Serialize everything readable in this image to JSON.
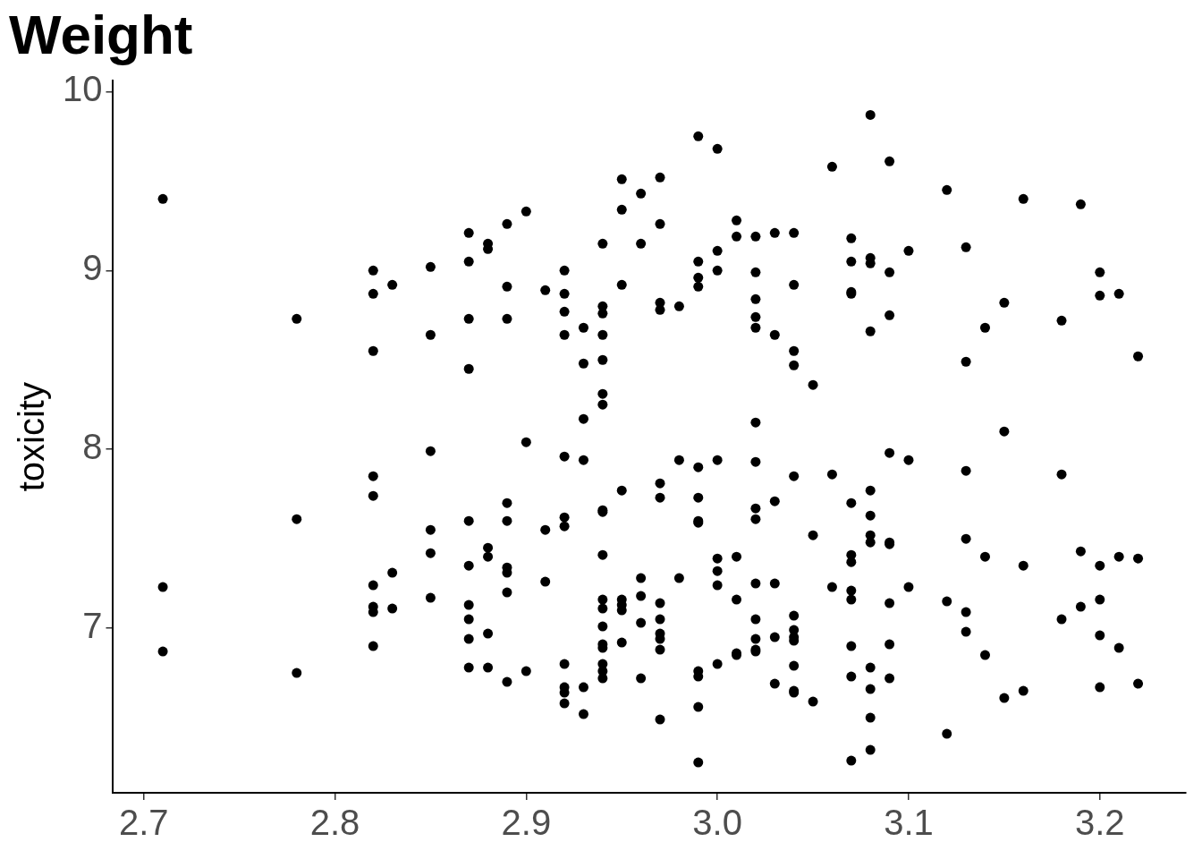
{
  "chart_data": {
    "type": "scatter",
    "title": "Weight",
    "ylabel": "toxicity",
    "color": "#000000",
    "marker": "circle",
    "grid": false,
    "legend": false,
    "xlim": [
      2.684,
      3.245
    ],
    "ylim": [
      6.08,
      10.06
    ],
    "xticks": [
      2.7,
      2.8,
      2.9,
      {
        "value": 3,
        "label": "3.0"
      },
      3.1,
      3.2
    ],
    "yticks": [
      7,
      8,
      9,
      10
    ],
    "x": [
      2.71,
      2.71,
      2.71,
      2.78,
      2.78,
      2.78,
      2.82,
      2.82,
      2.82,
      2.82,
      2.82,
      2.82,
      2.82,
      2.82,
      2.82,
      2.83,
      2.83,
      2.83,
      2.85,
      2.85,
      2.85,
      2.85,
      2.85,
      2.85,
      2.87,
      2.87,
      2.87,
      2.87,
      2.87,
      2.87,
      2.87,
      2.87,
      2.87,
      2.87,
      2.88,
      2.88,
      2.88,
      2.88,
      2.88,
      2.88,
      2.89,
      2.89,
      2.89,
      2.89,
      2.89,
      2.89,
      2.89,
      2.89,
      2.89,
      2.9,
      2.9,
      2.9,
      2.91,
      2.91,
      2.91,
      2.92,
      2.92,
      2.92,
      2.92,
      2.92,
      2.92,
      2.92,
      2.92,
      2.92,
      2.92,
      2.92,
      2.93,
      2.93,
      2.93,
      2.93,
      2.93,
      2.93,
      2.94,
      2.94,
      2.94,
      2.94,
      2.94,
      2.94,
      2.94,
      2.94,
      2.94,
      2.94,
      2.94,
      2.94,
      2.94,
      2.94,
      2.94,
      2.94,
      2.94,
      2.94,
      2.95,
      2.95,
      2.95,
      2.95,
      2.95,
      2.95,
      2.95,
      2.95,
      2.96,
      2.96,
      2.96,
      2.96,
      2.96,
      2.96,
      2.97,
      2.97,
      2.97,
      2.97,
      2.97,
      2.97,
      2.97,
      2.97,
      2.97,
      2.97,
      2.97,
      2.97,
      2.98,
      2.98,
      2.98,
      2.99,
      2.99,
      2.99,
      2.99,
      2.99,
      2.99,
      2.99,
      2.99,
      2.99,
      2.99,
      2.99,
      2.99,
      3.0,
      3.0,
      3.0,
      3.0,
      3.0,
      3.0,
      3.0,
      3.0,
      3.01,
      3.01,
      3.01,
      3.01,
      3.01,
      3.01,
      3.02,
      3.02,
      3.02,
      3.02,
      3.02,
      3.02,
      3.02,
      3.02,
      3.02,
      3.02,
      3.02,
      3.02,
      3.02,
      3.02,
      3.03,
      3.03,
      3.03,
      3.03,
      3.03,
      3.03,
      3.04,
      3.04,
      3.04,
      3.04,
      3.04,
      3.04,
      3.04,
      3.04,
      3.04,
      3.04,
      3.04,
      3.04,
      3.05,
      3.05,
      3.05,
      3.06,
      3.06,
      3.06,
      3.07,
      3.07,
      3.07,
      3.07,
      3.07,
      3.07,
      3.07,
      3.07,
      3.07,
      3.07,
      3.07,
      3.07,
      3.08,
      3.08,
      3.08,
      3.08,
      3.08,
      3.08,
      3.08,
      3.08,
      3.08,
      3.08,
      3.08,
      3.08,
      3.09,
      3.09,
      3.09,
      3.09,
      3.09,
      3.09,
      3.09,
      3.09,
      3.09,
      3.1,
      3.1,
      3.1,
      3.12,
      3.12,
      3.12,
      3.13,
      3.13,
      3.13,
      3.13,
      3.13,
      3.13,
      3.14,
      3.14,
      3.14,
      3.15,
      3.15,
      3.15,
      3.16,
      3.16,
      3.16,
      3.18,
      3.18,
      3.18,
      3.19,
      3.19,
      3.19,
      3.2,
      3.2,
      3.2,
      3.2,
      3.2,
      3.2,
      3.21,
      3.21,
      3.21,
      3.22,
      3.22,
      3.22
    ],
    "values": [
      9.4,
      7.23,
      6.87,
      8.73,
      7.61,
      6.75,
      9.0,
      8.87,
      8.55,
      7.85,
      7.74,
      7.24,
      7.12,
      7.09,
      6.9,
      8.92,
      7.31,
      7.11,
      9.02,
      8.64,
      7.99,
      7.55,
      7.42,
      7.17,
      9.21,
      9.05,
      8.73,
      8.45,
      7.6,
      7.35,
      7.13,
      7.05,
      6.94,
      6.78,
      9.15,
      9.12,
      7.45,
      7.4,
      6.97,
      6.78,
      9.26,
      8.91,
      8.73,
      7.7,
      7.6,
      7.34,
      7.31,
      7.2,
      6.7,
      9.33,
      8.04,
      6.76,
      8.89,
      7.55,
      7.26,
      9.0,
      8.87,
      8.77,
      8.64,
      7.96,
      7.62,
      7.57,
      6.8,
      6.67,
      6.64,
      6.58,
      8.68,
      8.48,
      8.17,
      7.94,
      6.67,
      6.52,
      9.15,
      8.8,
      8.76,
      8.64,
      8.5,
      8.31,
      8.25,
      7.66,
      7.65,
      7.41,
      7.16,
      7.11,
      7.01,
      6.91,
      6.89,
      6.8,
      6.76,
      6.72,
      9.51,
      9.34,
      8.92,
      7.77,
      7.16,
      7.13,
      7.1,
      6.92,
      9.43,
      9.15,
      7.28,
      7.18,
      7.03,
      6.72,
      9.52,
      9.26,
      8.82,
      8.78,
      7.81,
      7.73,
      7.14,
      7.05,
      6.97,
      6.94,
      6.88,
      6.49,
      8.8,
      7.94,
      7.28,
      9.75,
      9.05,
      8.96,
      8.91,
      7.9,
      7.73,
      7.6,
      7.59,
      6.76,
      6.73,
      6.56,
      6.25,
      9.68,
      9.11,
      9.0,
      7.94,
      7.39,
      7.32,
      7.24,
      6.8,
      9.28,
      9.19,
      7.4,
      7.16,
      6.86,
      6.85,
      9.19,
      8.99,
      8.84,
      8.74,
      8.68,
      8.15,
      7.93,
      7.67,
      7.61,
      7.25,
      7.05,
      6.94,
      6.88,
      6.87,
      9.21,
      8.64,
      7.71,
      7.25,
      6.95,
      6.69,
      9.21,
      8.92,
      8.55,
      8.47,
      7.85,
      7.07,
      6.99,
      6.95,
      6.93,
      6.79,
      6.65,
      6.64,
      8.36,
      7.52,
      6.59,
      9.58,
      7.86,
      7.23,
      9.18,
      9.05,
      8.88,
      8.87,
      7.7,
      7.41,
      7.37,
      7.21,
      7.16,
      6.9,
      6.73,
      6.26,
      9.87,
      9.07,
      9.04,
      8.66,
      7.77,
      7.63,
      7.52,
      7.48,
      6.78,
      6.66,
      6.5,
      6.32,
      9.61,
      8.99,
      8.75,
      7.98,
      7.48,
      7.47,
      7.14,
      6.91,
      6.72,
      9.11,
      7.94,
      7.23,
      9.45,
      7.15,
      6.41,
      9.13,
      8.49,
      7.88,
      7.5,
      7.09,
      6.98,
      8.68,
      7.4,
      6.85,
      8.82,
      8.1,
      6.61,
      9.4,
      7.35,
      6.65,
      8.72,
      7.86,
      7.05,
      9.37,
      7.43,
      7.12,
      8.99,
      8.86,
      7.35,
      7.16,
      6.96,
      6.67,
      8.87,
      7.4,
      6.89,
      8.52,
      7.39,
      6.69
    ]
  }
}
